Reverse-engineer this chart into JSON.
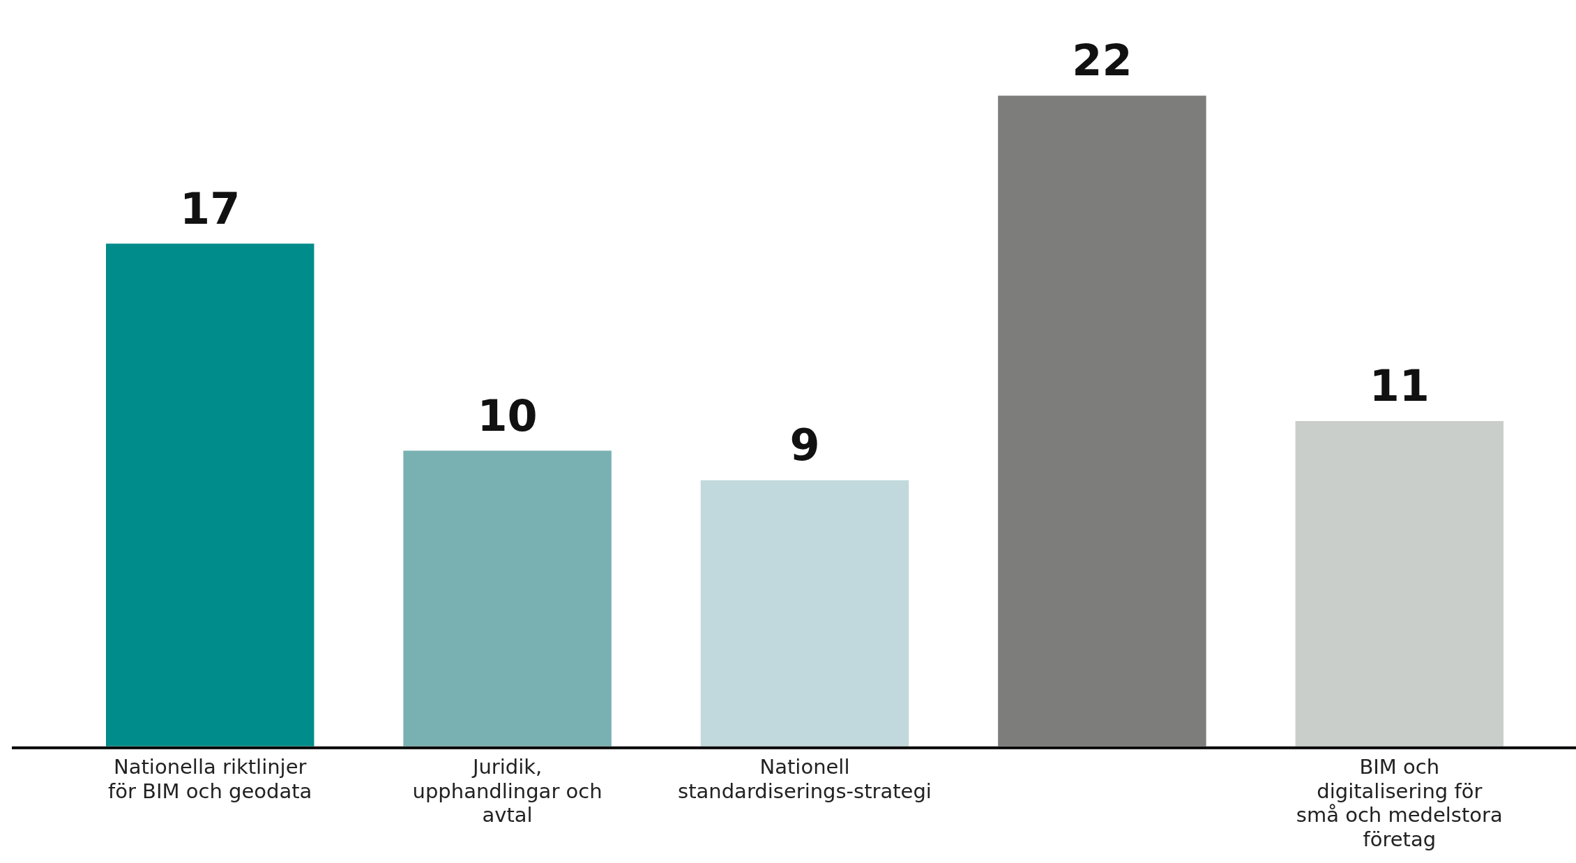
{
  "chart_data": {
    "type": "bar",
    "categories": [
      "Nationella riktlinjer för BIM och geodata",
      "Juridik, upphandlingar och avtal",
      "Nationell standardiserings-strategi",
      null,
      "BIM och digitalisering för små och medelstora företag"
    ],
    "values": [
      17,
      10,
      9,
      22,
      11
    ],
    "colors": [
      "#008c8a",
      "#79b1b2",
      "#c1d9dc",
      "#7d7e7b",
      "#c9ceca"
    ],
    "relative": false,
    "data_labels": true,
    "grid": false,
    "legend": false
  }
}
